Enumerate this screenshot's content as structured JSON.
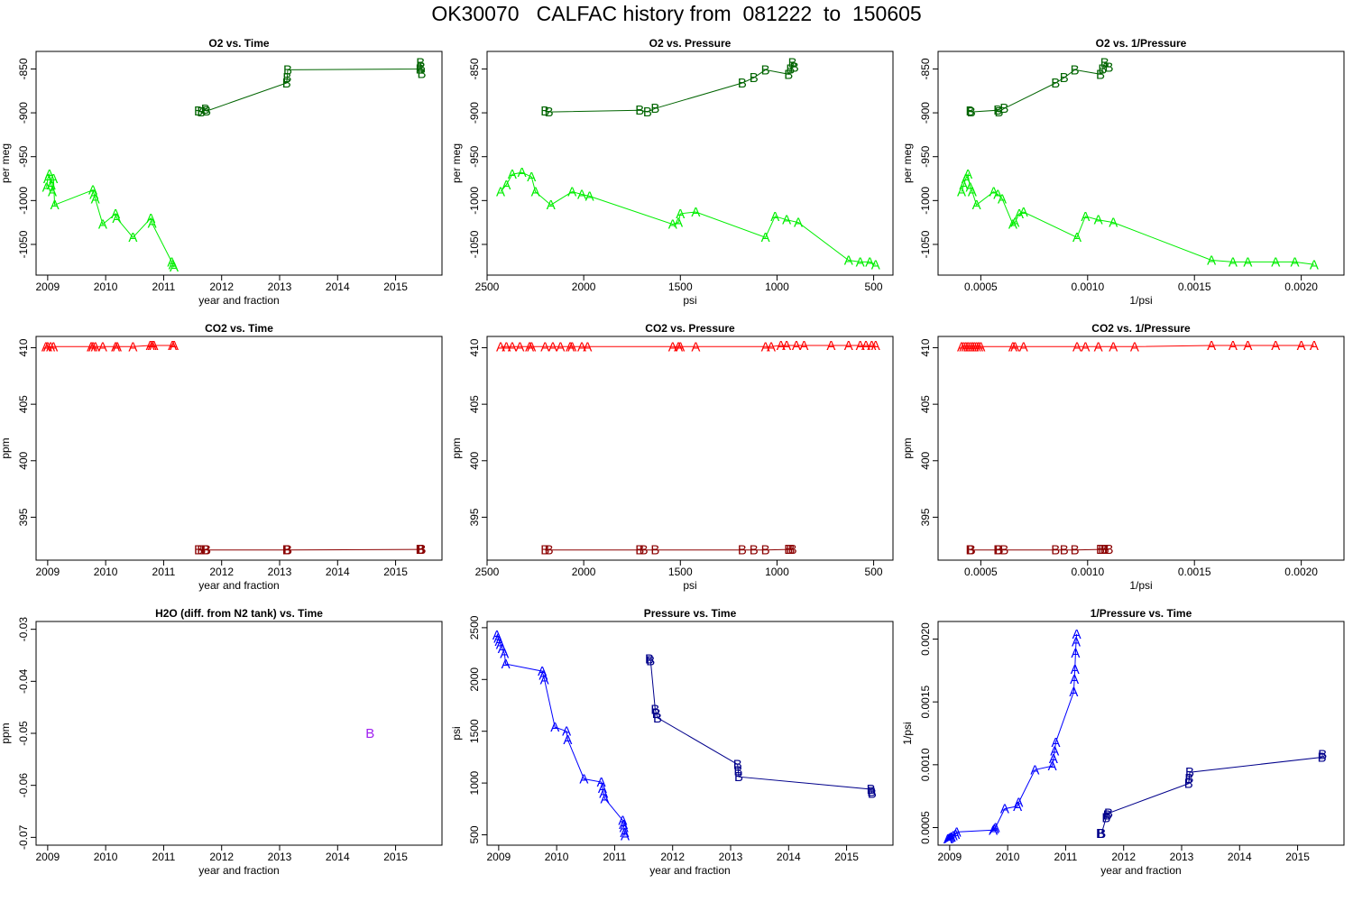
{
  "page": {
    "title": "OK30070   CALFAC history from  081222  to  150605"
  },
  "colors": {
    "a_o2": "#00ee00",
    "b_o2": "#006400",
    "a_co2": "#ff0000",
    "b_co2": "#8b0000",
    "h2o": "#a020f0",
    "a_p": "#0000ff",
    "b_p": "#00008b"
  },
  "chart_data": [
    {
      "id": "o2-time",
      "type": "line",
      "title": "O2 vs. Time",
      "xlabel": "year and fraction",
      "ylabel": "per meg",
      "xlim": [
        2008.8,
        2015.8
      ],
      "ylim": [
        -1085,
        -830
      ],
      "xticks": [
        2009,
        2010,
        2011,
        2012,
        2013,
        2014,
        2015
      ],
      "yticks": [
        -1050,
        -1000,
        -950,
        -900,
        -850
      ],
      "series": [
        {
          "name": "A",
          "color_key": "a_o2",
          "x": [
            2008.98,
            2009.0,
            2009.03,
            2009.06,
            2009.08,
            2009.1,
            2009.12,
            2009.78,
            2009.8,
            2009.82,
            2009.95,
            2010.17,
            2010.19,
            2010.47,
            2010.78,
            2010.8,
            2011.14,
            2011.16,
            2011.18
          ],
          "y": [
            -985,
            -975,
            -970,
            -982,
            -990,
            -975,
            -1005,
            -988,
            -993,
            -998,
            -1027,
            -1015,
            -1020,
            -1042,
            -1020,
            -1026,
            -1070,
            -1073,
            -1076
          ]
        },
        {
          "name": "B",
          "color_key": "b_o2",
          "x": [
            2011.6,
            2011.65,
            2011.72,
            2011.74,
            2013.12,
            2013.13,
            2013.14,
            2015.42,
            2015.43,
            2015.44,
            2015.45
          ],
          "y": [
            -898,
            -899,
            -896,
            -898,
            -866,
            -860,
            -851,
            -850,
            -843,
            -848,
            -855
          ]
        }
      ]
    },
    {
      "id": "o2-pressure",
      "type": "line",
      "title": "O2 vs. Pressure",
      "xlabel": "psi",
      "ylabel": "per meg",
      "xlim": [
        2500,
        400
      ],
      "ylim": [
        -1085,
        -830
      ],
      "xticks": [
        2500,
        2000,
        1500,
        1000,
        500
      ],
      "yticks": [
        -1050,
        -1000,
        -950,
        -900,
        -850
      ],
      "series": [
        {
          "name": "A",
          "color_key": "a_o2",
          "x": [
            2430,
            2400,
            2370,
            2320,
            2270,
            2250,
            2170,
            2060,
            2010,
            1970,
            1540,
            1510,
            1500,
            1420,
            1060,
            1010,
            950,
            890,
            630,
            570,
            520,
            490
          ],
          "y": [
            -990,
            -982,
            -970,
            -968,
            -973,
            -990,
            -1005,
            -990,
            -993,
            -995,
            -1027,
            -1025,
            -1015,
            -1013,
            -1042,
            -1018,
            -1022,
            -1025,
            -1068,
            -1070,
            -1070,
            -1073
          ]
        },
        {
          "name": "B",
          "color_key": "b_o2",
          "x": [
            2200,
            2180,
            1710,
            1670,
            1630,
            1180,
            1120,
            1060,
            940,
            930,
            920,
            910
          ],
          "y": [
            -898,
            -899,
            -897,
            -899,
            -895,
            -866,
            -860,
            -851,
            -856,
            -850,
            -843,
            -848
          ]
        }
      ]
    },
    {
      "id": "o2-inv-pressure",
      "type": "line",
      "title": "O2 vs. 1/Pressure",
      "xlabel": "1/psi",
      "ylabel": "per meg",
      "xlim": [
        0.0003,
        0.0022
      ],
      "ylim": [
        -1085,
        -830
      ],
      "xticks": [
        0.0005,
        0.001,
        0.0015,
        0.002
      ],
      "xtick_labels": [
        "0.0005",
        "0.0010",
        "0.0015",
        "0.0020"
      ],
      "yticks": [
        -1050,
        -1000,
        -950,
        -900,
        -850
      ],
      "series": [
        {
          "name": "A",
          "color_key": "a_o2",
          "x": [
            0.00041,
            0.00042,
            0.00043,
            0.00044,
            0.00045,
            0.00046,
            0.00048,
            0.00056,
            0.00058,
            0.0006,
            0.00065,
            0.00066,
            0.00068,
            0.0007,
            0.00095,
            0.00099,
            0.00105,
            0.00112,
            0.00158,
            0.00168,
            0.00175,
            0.00188,
            0.00197,
            0.00206
          ],
          "y": [
            -990,
            -982,
            -975,
            -970,
            -985,
            -990,
            -1005,
            -990,
            -993,
            -998,
            -1027,
            -1025,
            -1015,
            -1013,
            -1042,
            -1018,
            -1022,
            -1025,
            -1068,
            -1070,
            -1070,
            -1070,
            -1070,
            -1073
          ]
        },
        {
          "name": "B",
          "color_key": "b_o2",
          "x": [
            0.00045,
            0.000455,
            0.00058,
            0.000585,
            0.00061,
            0.00085,
            0.00089,
            0.00094,
            0.00106,
            0.00107,
            0.00108,
            0.0011
          ],
          "y": [
            -898,
            -899,
            -897,
            -899,
            -895,
            -866,
            -860,
            -851,
            -856,
            -850,
            -843,
            -848
          ]
        }
      ]
    },
    {
      "id": "co2-time",
      "type": "line",
      "title": "CO2 vs. Time",
      "xlabel": "year and fraction",
      "ylabel": "ppm",
      "xlim": [
        2008.8,
        2015.8
      ],
      "ylim": [
        391.2,
        411
      ],
      "xticks": [
        2009,
        2010,
        2011,
        2012,
        2013,
        2014,
        2015
      ],
      "yticks": [
        395,
        400,
        405,
        410
      ],
      "series": [
        {
          "name": "A",
          "color_key": "a_co2",
          "x": [
            2008.97,
            2009.0,
            2009.05,
            2009.1,
            2009.75,
            2009.78,
            2009.82,
            2009.95,
            2010.17,
            2010.2,
            2010.47,
            2010.77,
            2010.8,
            2010.83,
            2011.15,
            2011.18
          ],
          "y": [
            410.1,
            410.1,
            410.1,
            410.1,
            410.1,
            410.1,
            410.1,
            410.1,
            410.1,
            410.1,
            410.1,
            410.2,
            410.2,
            410.2,
            410.2,
            410.2
          ]
        },
        {
          "name": "B",
          "color_key": "b_co2",
          "x": [
            2011.6,
            2011.65,
            2011.72,
            2011.74,
            2013.12,
            2013.13,
            2013.14,
            2015.42,
            2015.43,
            2015.44,
            2015.45
          ],
          "y": [
            392.1,
            392.1,
            392.1,
            392.1,
            392.1,
            392.1,
            392.1,
            392.15,
            392.15,
            392.15,
            392.15
          ]
        }
      ]
    },
    {
      "id": "co2-pressure",
      "type": "line",
      "title": "CO2 vs. Pressure",
      "xlabel": "psi",
      "ylabel": "ppm",
      "xlim": [
        2500,
        400
      ],
      "ylim": [
        391.2,
        411
      ],
      "xticks": [
        2500,
        2000,
        1500,
        1000,
        500
      ],
      "yticks": [
        395,
        400,
        405,
        410
      ],
      "series": [
        {
          "name": "A",
          "color_key": "a_co2",
          "x": [
            2430,
            2400,
            2370,
            2330,
            2280,
            2270,
            2200,
            2160,
            2120,
            2070,
            2060,
            2010,
            1980,
            1540,
            1510,
            1500,
            1420,
            1060,
            1030,
            980,
            950,
            900,
            860,
            720,
            630,
            570,
            540,
            510,
            490
          ],
          "y": [
            410.1,
            410.1,
            410.1,
            410.1,
            410.1,
            410.1,
            410.1,
            410.1,
            410.1,
            410.1,
            410.1,
            410.1,
            410.1,
            410.1,
            410.1,
            410.1,
            410.1,
            410.1,
            410.1,
            410.2,
            410.2,
            410.2,
            410.2,
            410.2,
            410.2,
            410.2,
            410.2,
            410.2,
            410.2
          ]
        },
        {
          "name": "B",
          "color_key": "b_co2",
          "x": [
            2200,
            2180,
            1710,
            1690,
            1630,
            1180,
            1120,
            1060,
            940,
            930,
            920
          ],
          "y": [
            392.1,
            392.1,
            392.1,
            392.1,
            392.1,
            392.1,
            392.1,
            392.1,
            392.15,
            392.15,
            392.15
          ]
        }
      ]
    },
    {
      "id": "co2-inv-pressure",
      "type": "line",
      "title": "CO2 vs. 1/Pressure",
      "xlabel": "1/psi",
      "ylabel": "ppm",
      "xlim": [
        0.0003,
        0.0022
      ],
      "ylim": [
        391.2,
        411
      ],
      "xticks": [
        0.0005,
        0.001,
        0.0015,
        0.002
      ],
      "xtick_labels": [
        "0.0005",
        "0.0010",
        "0.0015",
        "0.0020"
      ],
      "yticks": [
        395,
        400,
        405,
        410
      ],
      "series": [
        {
          "name": "A",
          "color_key": "a_co2",
          "x": [
            0.00041,
            0.00042,
            0.00043,
            0.00044,
            0.00045,
            0.00046,
            0.00047,
            0.00048,
            0.00049,
            0.0005,
            0.00065,
            0.00066,
            0.0007,
            0.00095,
            0.00099,
            0.00105,
            0.00112,
            0.00122,
            0.00158,
            0.00168,
            0.00175,
            0.00188,
            0.002,
            0.00206
          ],
          "y": [
            410.1,
            410.1,
            410.1,
            410.1,
            410.1,
            410.1,
            410.1,
            410.1,
            410.1,
            410.1,
            410.1,
            410.1,
            410.1,
            410.1,
            410.1,
            410.1,
            410.1,
            410.1,
            410.2,
            410.2,
            410.2,
            410.2,
            410.2,
            410.2
          ]
        },
        {
          "name": "B",
          "color_key": "b_co2",
          "x": [
            0.00045,
            0.000455,
            0.00058,
            0.000585,
            0.00061,
            0.00085,
            0.00089,
            0.00094,
            0.00106,
            0.00107,
            0.00108,
            0.0011
          ],
          "y": [
            392.1,
            392.1,
            392.1,
            392.1,
            392.1,
            392.1,
            392.1,
            392.1,
            392.15,
            392.15,
            392.15,
            392.15
          ]
        }
      ]
    },
    {
      "id": "h2o-time",
      "type": "scatter",
      "title": "H2O (diff. from N2 tank) vs. Time",
      "xlabel": "year and fraction",
      "ylabel": "ppm",
      "xlim": [
        2008.8,
        2015.8
      ],
      "ylim": [
        -0.0715,
        -0.0285
      ],
      "xticks": [
        2009,
        2010,
        2011,
        2012,
        2013,
        2014,
        2015
      ],
      "yticks": [
        -0.07,
        -0.06,
        -0.05,
        -0.04,
        -0.03
      ],
      "ytick_labels": [
        "-0.07",
        "-0.06",
        "-0.05",
        "-0.04",
        "-0.03"
      ],
      "series": [
        {
          "name": "B",
          "color_key": "h2o",
          "connect": false,
          "x": [
            2014.56
          ],
          "y": [
            -0.05
          ]
        }
      ]
    },
    {
      "id": "pressure-time",
      "type": "line",
      "title": "Pressure vs. Time",
      "xlabel": "year and fraction",
      "ylabel": "psi",
      "xlim": [
        2008.8,
        2015.8
      ],
      "ylim": [
        400,
        2560
      ],
      "xticks": [
        2009,
        2010,
        2011,
        2012,
        2013,
        2014,
        2015
      ],
      "yticks": [
        500,
        1000,
        1500,
        2000,
        2500
      ],
      "series": [
        {
          "name": "A",
          "color_key": "a_p",
          "x": [
            2008.97,
            2008.99,
            2009.01,
            2009.03,
            2009.06,
            2009.1,
            2009.12,
            2009.75,
            2009.77,
            2009.79,
            2009.97,
            2010.17,
            2010.19,
            2010.47,
            2010.77,
            2010.79,
            2010.81,
            2010.83,
            2011.14,
            2011.15,
            2011.16,
            2011.17,
            2011.18
          ],
          "y": [
            2430,
            2400,
            2370,
            2340,
            2300,
            2250,
            2150,
            2080,
            2040,
            2000,
            1540,
            1500,
            1420,
            1040,
            1010,
            950,
            900,
            850,
            640,
            600,
            570,
            520,
            490
          ]
        },
        {
          "name": "B",
          "color_key": "b_p",
          "x": [
            2011.6,
            2011.62,
            2011.7,
            2011.72,
            2011.74,
            2013.12,
            2013.13,
            2013.14,
            2015.42,
            2015.43,
            2015.44
          ],
          "y": [
            2200,
            2180,
            1710,
            1670,
            1630,
            1180,
            1120,
            1060,
            940,
            920,
            900
          ]
        }
      ]
    },
    {
      "id": "inv-pressure-time",
      "type": "line",
      "title": "1/Pressure vs. Time",
      "xlabel": "year and fraction",
      "ylabel": "1/psi",
      "xlim": [
        2008.8,
        2015.8
      ],
      "ylim": [
        0.00036,
        0.00214
      ],
      "xticks": [
        2009,
        2010,
        2011,
        2012,
        2013,
        2014,
        2015
      ],
      "yticks": [
        0.0005,
        0.001,
        0.0015,
        0.002
      ],
      "ytick_labels": [
        "0.0005",
        "0.0010",
        "0.0015",
        "0.0020"
      ],
      "series": [
        {
          "name": "A",
          "color_key": "a_p",
          "x": [
            2008.97,
            2008.99,
            2009.01,
            2009.03,
            2009.06,
            2009.1,
            2009.12,
            2009.75,
            2009.77,
            2009.79,
            2009.95,
            2010.17,
            2010.19,
            2010.47,
            2010.77,
            2010.79,
            2010.81,
            2010.83,
            2011.14,
            2011.15,
            2011.16,
            2011.17,
            2011.18,
            2011.19
          ],
          "y": [
            0.00041,
            0.000415,
            0.00042,
            0.000425,
            0.000435,
            0.000445,
            0.000465,
            0.00048,
            0.00049,
            0.0005,
            0.00065,
            0.00067,
            0.0007,
            0.00096,
            0.00099,
            0.00105,
            0.00111,
            0.00118,
            0.00158,
            0.00168,
            0.00176,
            0.00189,
            0.00198,
            0.00204
          ]
        },
        {
          "name": "B",
          "color_key": "b_p",
          "x": [
            2011.6,
            2011.62,
            2011.7,
            2011.72,
            2011.74,
            2013.12,
            2013.13,
            2013.14,
            2015.42,
            2015.43
          ],
          "y": [
            0.000455,
            0.000455,
            0.00058,
            0.0006,
            0.000615,
            0.00085,
            0.00089,
            0.00094,
            0.00106,
            0.00108
          ]
        }
      ]
    }
  ]
}
